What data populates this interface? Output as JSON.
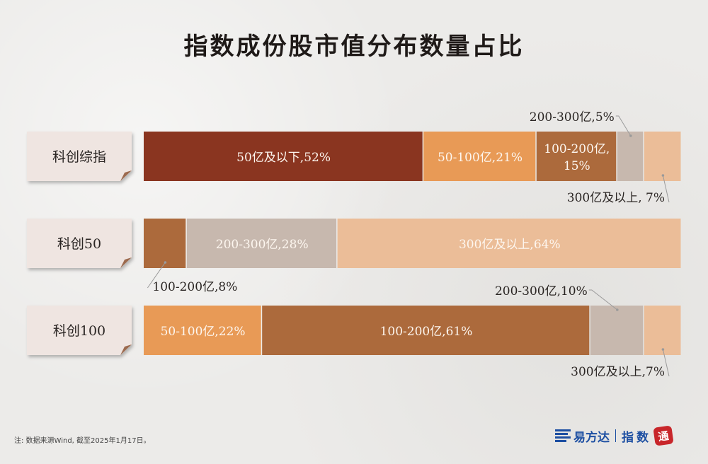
{
  "title": "指数成份股市值分布数量占比",
  "note": "注: 数据来源Wind, 截至2025年1月17日。",
  "brand": {
    "name": "易方达",
    "sub": "指数",
    "seal": "通"
  },
  "colors": {
    "lt50": "#8a3520",
    "c50_100": "#e89a56",
    "c100_200": "#ac6a3c",
    "c200_300": "#c7b8ae",
    "gt300": "#ebbd98"
  },
  "chart_data": {
    "type": "bar",
    "orientation": "horizontal",
    "stacked": true,
    "title": "指数成份股市值分布数量占比",
    "unit": "%",
    "categories": [
      "科创综指",
      "科创50",
      "科创100"
    ],
    "segments": [
      [
        {
          "label": "50亿及以下,52%",
          "value": 52,
          "color_key": "lt50",
          "text_inside": true
        },
        {
          "label": "50-100亿,21%",
          "value": 21,
          "color_key": "c50_100",
          "text_inside": true
        },
        {
          "label": "100-200亿,",
          "label2": "15%",
          "value": 15,
          "color_key": "c100_200",
          "text_inside": true
        },
        {
          "label": "200-300亿,5%",
          "value": 5,
          "color_key": "c200_300",
          "text_inside": false,
          "callout": "above"
        },
        {
          "label": "300亿及以上, 7%",
          "value": 7,
          "color_key": "gt300",
          "text_inside": false,
          "callout": "below"
        }
      ],
      [
        {
          "label": "100-200亿,8%",
          "value": 8,
          "color_key": "c100_200",
          "text_inside": false,
          "callout": "below"
        },
        {
          "label": "200-300亿,28%",
          "value": 28,
          "color_key": "c200_300",
          "text_inside": true
        },
        {
          "label": "300亿及以上,64%",
          "value": 64,
          "color_key": "gt300",
          "text_inside": true
        }
      ],
      [
        {
          "label": "50-100亿,22%",
          "value": 22,
          "color_key": "c50_100",
          "text_inside": true
        },
        {
          "label": "100-200亿,61%",
          "value": 61,
          "color_key": "c100_200",
          "text_inside": true
        },
        {
          "label": "200-300亿,10%",
          "value": 10,
          "color_key": "c200_300",
          "text_inside": false,
          "callout": "above"
        },
        {
          "label": "300亿及以上,7%",
          "value": 7,
          "color_key": "gt300",
          "text_inside": false,
          "callout": "below"
        }
      ]
    ]
  }
}
